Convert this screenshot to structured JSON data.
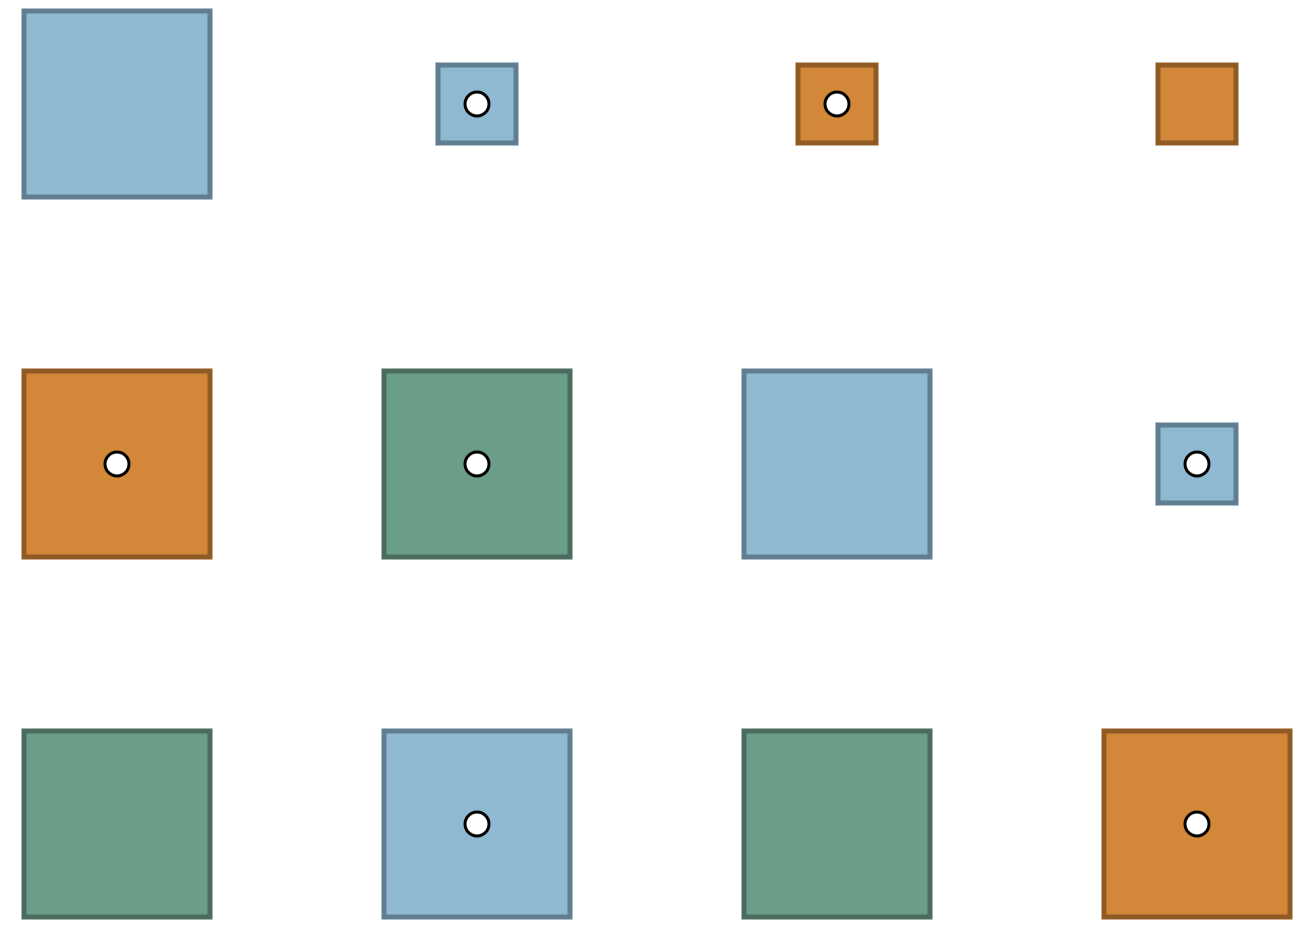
{
  "colors": {
    "blue": {
      "fill": "#8fb8d1",
      "stroke": "#5f7f91"
    },
    "orange": {
      "fill": "#d38738",
      "stroke": "#8f5b23"
    },
    "green": {
      "fill": "#6b9e89",
      "stroke": "#4a6b5e"
    },
    "dot_fill": "#ffffff",
    "dot_stroke": "#000000"
  },
  "grid": {
    "rows": 3,
    "cols": 4
  },
  "items": [
    {
      "row": 0,
      "col": 0,
      "color": "blue",
      "size": "large",
      "marked": false
    },
    {
      "row": 0,
      "col": 1,
      "color": "blue",
      "size": "small",
      "marked": true
    },
    {
      "row": 0,
      "col": 2,
      "color": "orange",
      "size": "small",
      "marked": true
    },
    {
      "row": 0,
      "col": 3,
      "color": "orange",
      "size": "small",
      "marked": false
    },
    {
      "row": 1,
      "col": 0,
      "color": "orange",
      "size": "large",
      "marked": true
    },
    {
      "row": 1,
      "col": 1,
      "color": "green",
      "size": "large",
      "marked": true
    },
    {
      "row": 1,
      "col": 2,
      "color": "blue",
      "size": "large",
      "marked": false
    },
    {
      "row": 1,
      "col": 3,
      "color": "blue",
      "size": "small",
      "marked": true
    },
    {
      "row": 2,
      "col": 0,
      "color": "green",
      "size": "large",
      "marked": false
    },
    {
      "row": 2,
      "col": 1,
      "color": "blue",
      "size": "large",
      "marked": true
    },
    {
      "row": 2,
      "col": 2,
      "color": "green",
      "size": "large",
      "marked": false
    },
    {
      "row": 2,
      "col": 3,
      "color": "orange",
      "size": "large",
      "marked": true
    }
  ]
}
